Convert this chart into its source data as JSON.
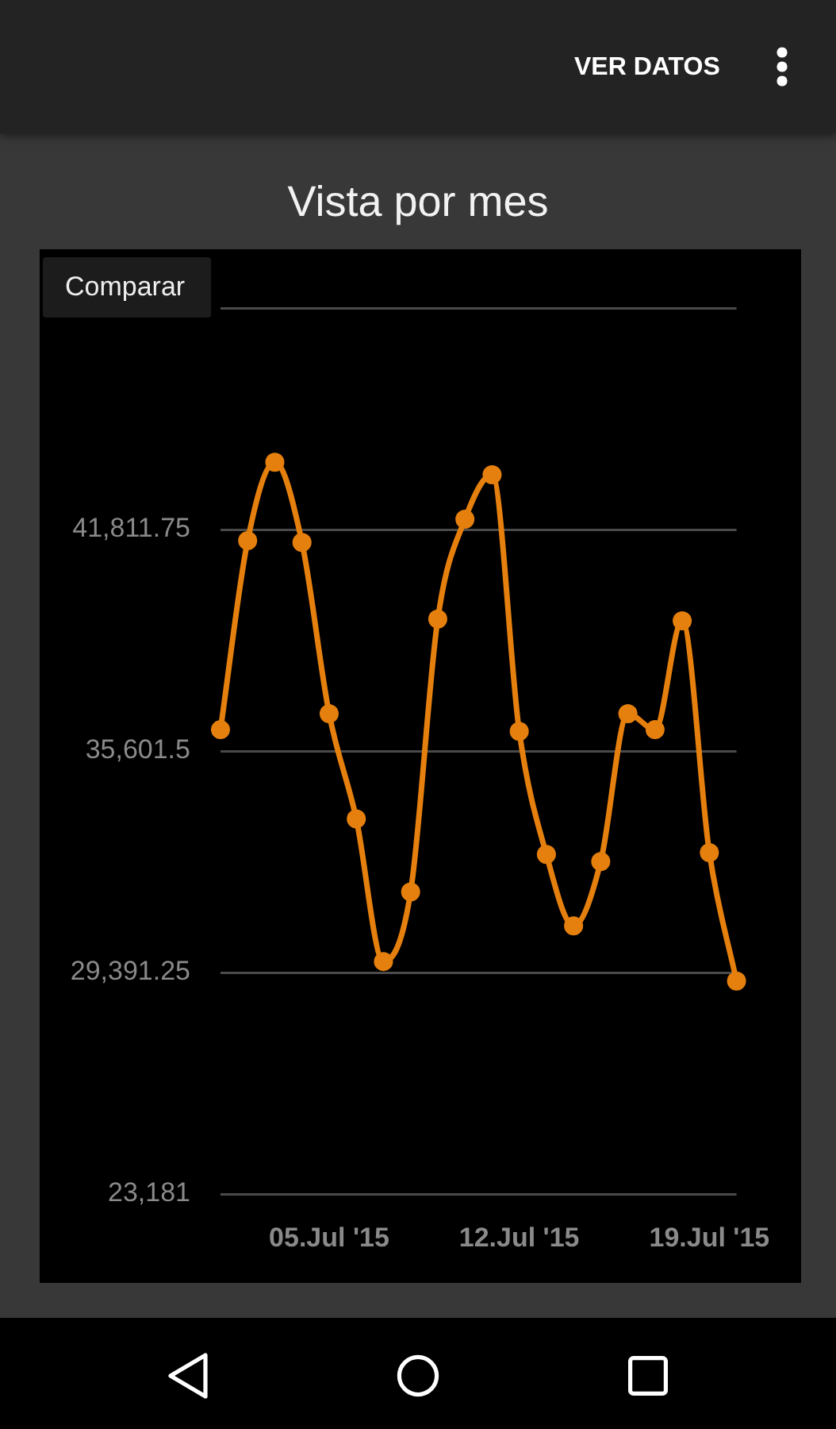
{
  "chart_data": {
    "type": "line",
    "title": "Vista por mes",
    "annotations": [
      "VER DATOS",
      "Comparar"
    ],
    "x": [
      "2015-07-01",
      "2015-07-02",
      "2015-07-03",
      "2015-07-04",
      "2015-07-05",
      "2015-07-06",
      "2015-07-07",
      "2015-07-08",
      "2015-07-09",
      "2015-07-10",
      "2015-07-11",
      "2015-07-12",
      "2015-07-13",
      "2015-07-14",
      "2015-07-15",
      "2015-07-16",
      "2015-07-17",
      "2015-07-18",
      "2015-07-19",
      "2015-07-20"
    ],
    "values": [
      36200,
      41500,
      43700,
      41450,
      36650,
      33700,
      29700,
      31650,
      39300,
      42100,
      43350,
      36150,
      32700,
      30700,
      32500,
      36650,
      36200,
      39250,
      32750,
      29150
    ],
    "color": "#e5800e",
    "xlim": [
      "2015-07-01",
      "2015-07-20"
    ],
    "xticks": [
      {
        "value": "2015-07-05",
        "label": "05.Jul '15"
      },
      {
        "value": "2015-07-12",
        "label": "12.Jul '15"
      },
      {
        "value": "2015-07-19",
        "label": "19.Jul '15"
      }
    ],
    "ylim": [
      23181,
      48022
    ],
    "yticks": [
      {
        "value": 23181,
        "label": "23,181"
      },
      {
        "value": 29391.25,
        "label": "29,391.25"
      },
      {
        "value": 35601.5,
        "label": "35,601.5"
      },
      {
        "value": 41811.75,
        "label": "41,811.75"
      },
      {
        "value": 48022,
        "label": null
      }
    ],
    "grid": "y",
    "marker": "circle",
    "line_style": "solid"
  }
}
